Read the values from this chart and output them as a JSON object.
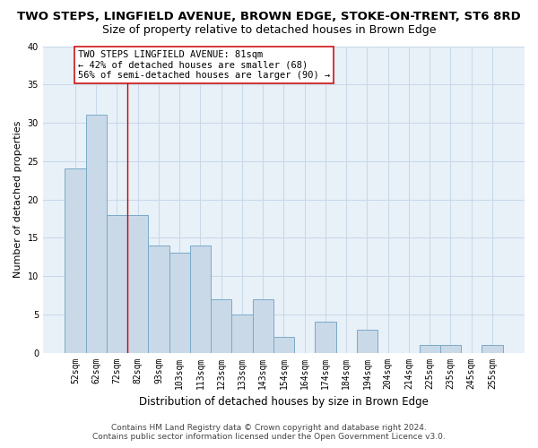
{
  "title1": "TWO STEPS, LINGFIELD AVENUE, BROWN EDGE, STOKE-ON-TRENT, ST6 8RD",
  "title2": "Size of property relative to detached houses in Brown Edge",
  "xlabel": "Distribution of detached houses by size in Brown Edge",
  "ylabel": "Number of detached properties",
  "categories": [
    "52sqm",
    "62sqm",
    "72sqm",
    "82sqm",
    "93sqm",
    "103sqm",
    "113sqm",
    "123sqm",
    "133sqm",
    "143sqm",
    "154sqm",
    "164sqm",
    "174sqm",
    "184sqm",
    "194sqm",
    "204sqm",
    "214sqm",
    "225sqm",
    "235sqm",
    "245sqm",
    "255sqm"
  ],
  "values": [
    24,
    31,
    18,
    18,
    14,
    13,
    14,
    7,
    5,
    7,
    2,
    0,
    4,
    0,
    3,
    0,
    0,
    1,
    1,
    0,
    1
  ],
  "bar_color": "#c9d9e8",
  "bar_edge_color": "#7aaac8",
  "bar_edge_width": 0.7,
  "vline_color": "#cc0000",
  "vline_linewidth": 1.0,
  "annotation_text": "TWO STEPS LINGFIELD AVENUE: 81sqm\n← 42% of detached houses are smaller (68)\n56% of semi-detached houses are larger (90) →",
  "annotation_box_facecolor": "#ffffff",
  "annotation_box_edgecolor": "#cc0000",
  "ylim": [
    0,
    40
  ],
  "yticks": [
    0,
    5,
    10,
    15,
    20,
    25,
    30,
    35,
    40
  ],
  "grid_color": "#c8d8e8",
  "background_color": "#e8f0f8",
  "footer1": "Contains HM Land Registry data © Crown copyright and database right 2024.",
  "footer2": "Contains public sector information licensed under the Open Government Licence v3.0.",
  "title1_fontsize": 9.5,
  "title2_fontsize": 9,
  "xlabel_fontsize": 8.5,
  "ylabel_fontsize": 8,
  "tick_fontsize": 7,
  "annotation_fontsize": 7.5,
  "footer_fontsize": 6.5
}
